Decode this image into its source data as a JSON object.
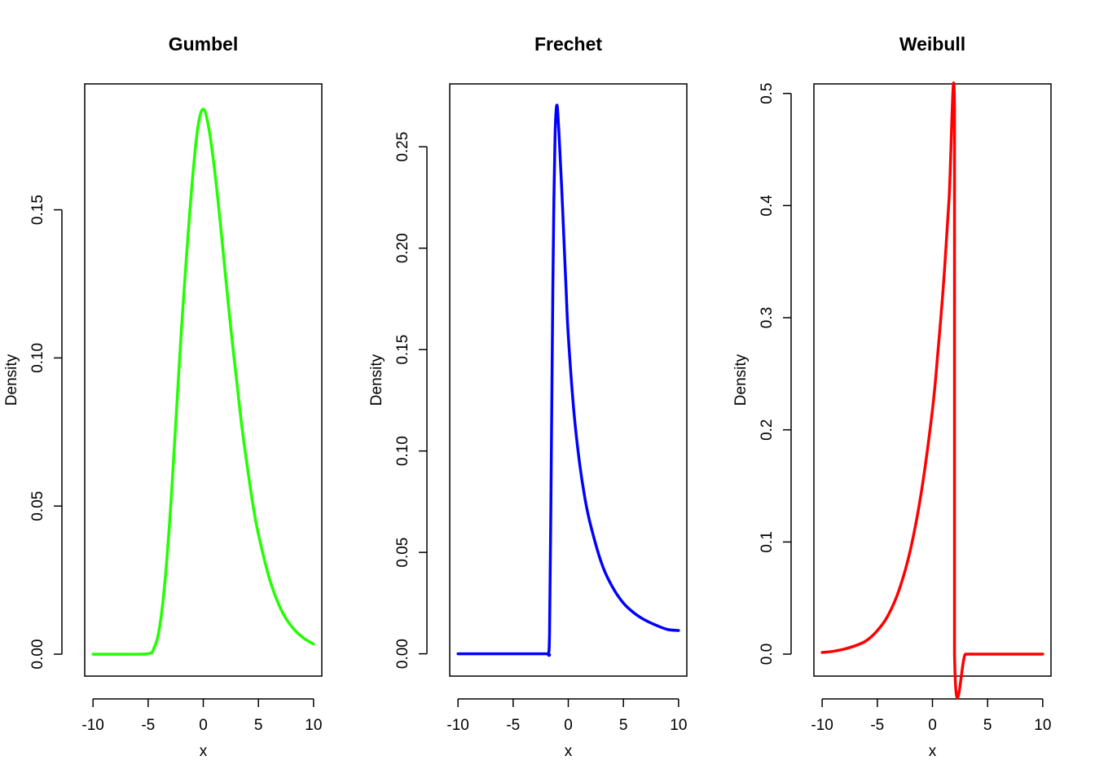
{
  "chart_data": [
    {
      "type": "line",
      "title": "Gumbel",
      "xlabel": "x",
      "ylabel": "Density",
      "xlim": [
        -10.75,
        10.75
      ],
      "ylim": [
        -0.0074,
        0.1925
      ],
      "xticks": [
        -10,
        -5,
        0,
        5,
        10
      ],
      "xtick_labels": [
        "-10",
        "-5",
        "0",
        "5",
        "10"
      ],
      "yticks": [
        0.0,
        0.05,
        0.1,
        0.15
      ],
      "ytick_labels": [
        "0.00",
        "0.05",
        "0.10",
        "0.15"
      ],
      "color": "#22ff00",
      "series": [
        {
          "x": [
            -10,
            -7,
            -5,
            -4.5,
            -4,
            -3.5,
            -3,
            -2.5,
            -2,
            -1.5,
            -1,
            -0.5,
            0,
            0.5,
            1,
            1.5,
            2,
            2.5,
            3,
            3.5,
            4,
            4.5,
            5,
            6,
            7,
            8,
            9,
            10
          ],
          "y": [
            0.0,
            0.0,
            0.0002,
            0.0018,
            0.0083,
            0.0235,
            0.0475,
            0.0777,
            0.1086,
            0.1354,
            0.1595,
            0.1776,
            0.184,
            0.1776,
            0.1642,
            0.1472,
            0.1283,
            0.1099,
            0.0932,
            0.0768,
            0.0631,
            0.0505,
            0.0405,
            0.0255,
            0.0155,
            0.0094,
            0.0057,
            0.0034
          ]
        }
      ]
    },
    {
      "type": "line",
      "title": "Frechet",
      "xlabel": "x",
      "ylabel": "Density",
      "xlim": [
        -10.75,
        10.75
      ],
      "ylim": [
        -0.011,
        0.281
      ],
      "xticks": [
        -10,
        -5,
        0,
        5,
        10
      ],
      "xtick_labels": [
        "-10",
        "-5",
        "0",
        "5",
        "10"
      ],
      "yticks": [
        0.0,
        0.05,
        0.1,
        0.15,
        0.2,
        0.25
      ],
      "ytick_labels": [
        "0.00",
        "0.05",
        "0.10",
        "0.15",
        "0.20",
        "0.25"
      ],
      "color": "#0000ff",
      "series": [
        {
          "x": [
            -10,
            -5,
            -2,
            -1.8,
            -1.7,
            -1.6,
            -1.5,
            -1.4,
            -1.3,
            -1.2,
            -1.1,
            -1.0,
            -0.9,
            -0.8,
            -0.6,
            -0.4,
            -0.2,
            0,
            0.5,
            1,
            1.5,
            2,
            3,
            4,
            5,
            6,
            7,
            8,
            9,
            10
          ],
          "y": [
            0.0,
            0.0,
            0.0,
            0.0,
            0.01,
            0.06,
            0.12,
            0.18,
            0.225,
            0.255,
            0.268,
            0.27,
            0.262,
            0.252,
            0.23,
            0.205,
            0.18,
            0.157,
            0.12,
            0.095,
            0.077,
            0.064,
            0.045,
            0.033,
            0.025,
            0.02,
            0.0165,
            0.014,
            0.012,
            0.0115
          ]
        }
      ]
    },
    {
      "type": "line",
      "title": "Weibull",
      "xlabel": "x",
      "ylabel": "Density",
      "xlim": [
        -10.75,
        10.75
      ],
      "ylim": [
        -0.0196,
        0.5085
      ],
      "xticks": [
        -10,
        -5,
        0,
        5,
        10
      ],
      "xtick_labels": [
        "-10",
        "-5",
        "0",
        "5",
        "10"
      ],
      "yticks": [
        0.0,
        0.1,
        0.2,
        0.3,
        0.4,
        0.5
      ],
      "ytick_labels": [
        "0.0",
        "0.1",
        "0.2",
        "0.3",
        "0.4",
        "0.5"
      ],
      "color": "#ff0000",
      "series": [
        {
          "x": [
            -10,
            -9,
            -8,
            -7,
            -6,
            -5,
            -4,
            -3,
            -2,
            -1,
            0,
            0.5,
            1,
            1.5,
            2,
            2.001,
            3,
            4,
            5,
            6,
            7,
            8,
            9,
            10
          ],
          "y": [
            0.0015,
            0.0025,
            0.0045,
            0.0075,
            0.012,
            0.021,
            0.035,
            0.058,
            0.093,
            0.145,
            0.218,
            0.27,
            0.33,
            0.405,
            0.487,
            0.0,
            0.0,
            0.0,
            0.0,
            0.0,
            0.0,
            0.0,
            0.0,
            0.0
          ]
        }
      ]
    }
  ]
}
